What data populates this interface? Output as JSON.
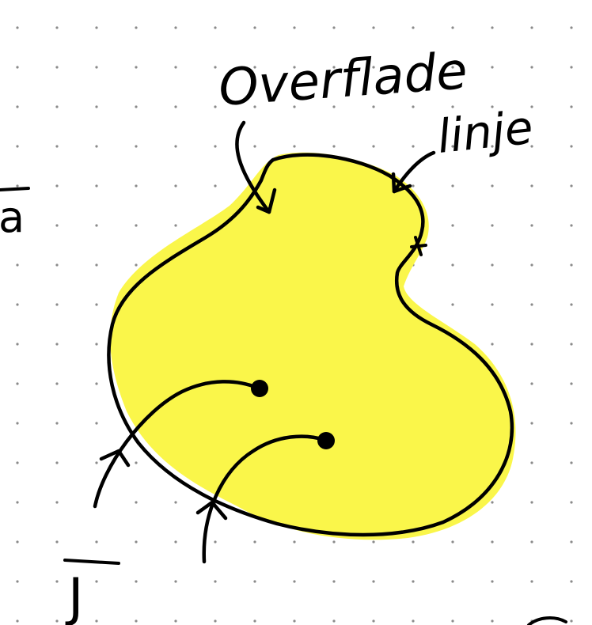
{
  "labels": {
    "surface": "Overflade",
    "line": "linje",
    "vector_a": "a",
    "vector_j": "J"
  },
  "colors": {
    "fill": "#FAF64A",
    "stroke": "#000000",
    "dots": "#8a8a8a",
    "background": "#ffffff"
  },
  "background": "dot-grid"
}
